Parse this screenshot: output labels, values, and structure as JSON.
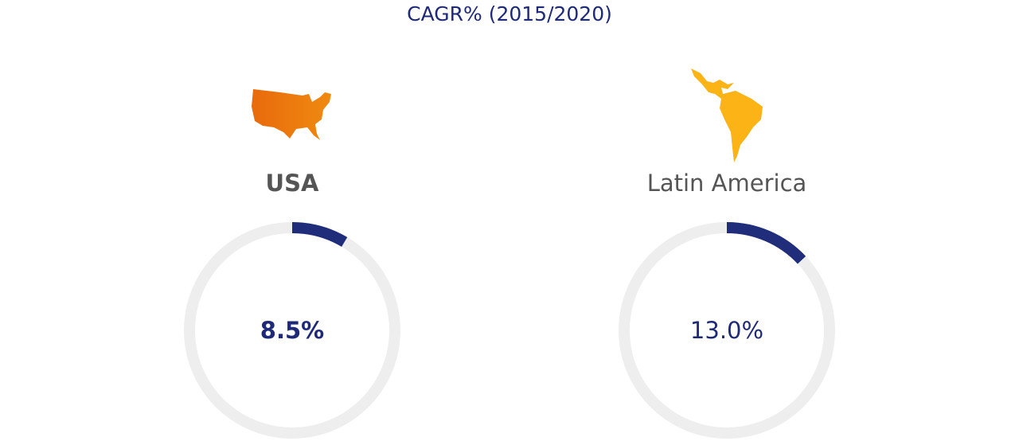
{
  "chart_data": {
    "type": "gauge",
    "title": "CAGR% (2015/2020)",
    "categories": [
      "USA",
      "Latin America"
    ],
    "values": [
      8.5,
      13.0
    ],
    "value_labels": [
      "8.5%",
      "13.0%"
    ],
    "ylim": [
      0,
      100
    ],
    "color": "#1f2d7a",
    "track_color": "#eeeeee"
  }
}
